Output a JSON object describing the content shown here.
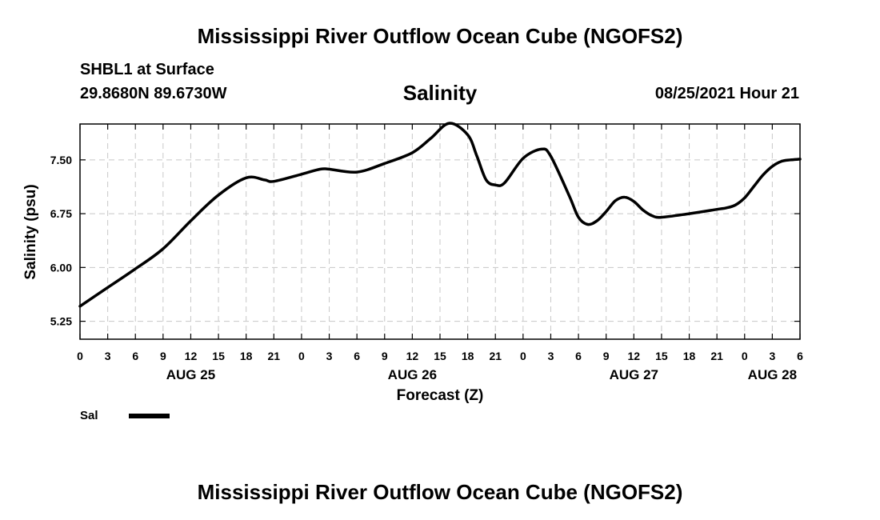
{
  "page": {
    "title_top": "Mississippi River Outflow Ocean Cube (NGOFS2)",
    "title_bottom": "Mississippi River Outflow Ocean Cube (NGOFS2)",
    "station": "SHBL1 at Surface",
    "coords": "29.8680N  89.6730W",
    "datetime": "08/25/2021 Hour 21"
  },
  "chart_data": {
    "type": "line",
    "title": "Salinity",
    "xlabel": "Forecast (Z)",
    "ylabel": "Salinity (psu)",
    "x_unit": "hours from 2021-08-25 00Z",
    "xlim": [
      0,
      78
    ],
    "ylim": [
      5.0,
      8.0
    ],
    "yticks": [
      5.25,
      6.0,
      6.75,
      7.5
    ],
    "ytick_labels": [
      "5.25",
      "6.00",
      "6.75",
      "7.50"
    ],
    "grid": true,
    "xticks": [
      0,
      3,
      6,
      9,
      12,
      15,
      18,
      21,
      24,
      27,
      30,
      33,
      36,
      39,
      42,
      45,
      48,
      51,
      54,
      57,
      60,
      63,
      66,
      69,
      72,
      75,
      78
    ],
    "xtick_labels": [
      "0",
      "3",
      "6",
      "9",
      "12",
      "15",
      "18",
      "21",
      "0",
      "3",
      "6",
      "9",
      "12",
      "15",
      "18",
      "21",
      "0",
      "3",
      "6",
      "9",
      "12",
      "15",
      "18",
      "21",
      "0",
      "3",
      "6"
    ],
    "day_labels": [
      {
        "x": 12,
        "label": "AUG 25"
      },
      {
        "x": 36,
        "label": "AUG 26"
      },
      {
        "x": 60,
        "label": "AUG 27"
      },
      {
        "x": 75,
        "label": "AUG 28"
      }
    ],
    "legend": {
      "label": "Sal",
      "placement": "bottom-left"
    },
    "series": [
      {
        "name": "Sal",
        "color": "#000000",
        "x": [
          0,
          3,
          6,
          9,
          12,
          15,
          18,
          20,
          21,
          24,
          26,
          27,
          30,
          33,
          36,
          38,
          40,
          42,
          43,
          44,
          45,
          46,
          48,
          50,
          51,
          53,
          54,
          55,
          56,
          57,
          58,
          59,
          60,
          61,
          62,
          63,
          66,
          69,
          70,
          71,
          72,
          73,
          74,
          75,
          76,
          77,
          78
        ],
        "y": [
          5.46,
          5.72,
          5.98,
          6.26,
          6.65,
          7.01,
          7.25,
          7.22,
          7.2,
          7.3,
          7.37,
          7.37,
          7.33,
          7.45,
          7.6,
          7.8,
          8.01,
          7.85,
          7.55,
          7.22,
          7.15,
          7.18,
          7.52,
          7.65,
          7.55,
          7.0,
          6.7,
          6.6,
          6.65,
          6.78,
          6.93,
          6.98,
          6.92,
          6.8,
          6.72,
          6.7,
          6.75,
          6.81,
          6.83,
          6.87,
          6.97,
          7.13,
          7.29,
          7.41,
          7.48,
          7.5,
          7.51
        ]
      }
    ]
  }
}
